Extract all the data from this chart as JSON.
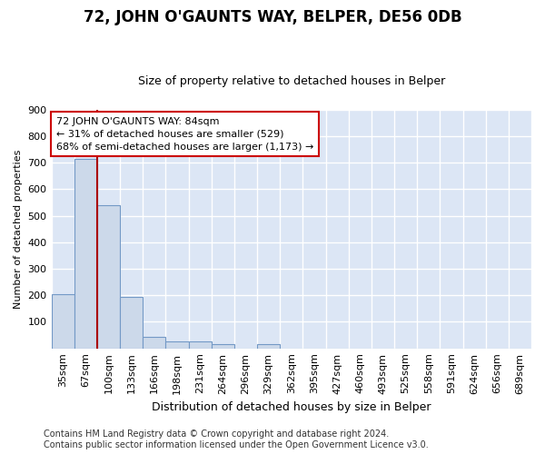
{
  "title": "72, JOHN O'GAUNTS WAY, BELPER, DE56 0DB",
  "subtitle": "Size of property relative to detached houses in Belper",
  "xlabel": "Distribution of detached houses by size in Belper",
  "ylabel": "Number of detached properties",
  "categories": [
    "35sqm",
    "67sqm",
    "100sqm",
    "133sqm",
    "166sqm",
    "198sqm",
    "231sqm",
    "264sqm",
    "296sqm",
    "329sqm",
    "362sqm",
    "395sqm",
    "427sqm",
    "460sqm",
    "493sqm",
    "525sqm",
    "558sqm",
    "591sqm",
    "624sqm",
    "656sqm",
    "689sqm"
  ],
  "values": [
    205,
    715,
    540,
    195,
    45,
    25,
    25,
    15,
    0,
    15,
    0,
    0,
    0,
    0,
    0,
    0,
    0,
    0,
    0,
    0,
    0
  ],
  "bar_color": "#ccd9ea",
  "bar_edge_color": "#7399c6",
  "red_line_color": "#aa0000",
  "annotation_text": "72 JOHN O'GAUNTS WAY: 84sqm\n← 31% of detached houses are smaller (529)\n68% of semi-detached houses are larger (1,173) →",
  "annotation_box_facecolor": "#ffffff",
  "annotation_box_edgecolor": "#cc0000",
  "fig_bg_color": "#ffffff",
  "plot_bg_color": "#dce6f5",
  "grid_color": "#ffffff",
  "footer": "Contains HM Land Registry data © Crown copyright and database right 2024.\nContains public sector information licensed under the Open Government Licence v3.0.",
  "ylim": [
    0,
    900
  ],
  "yticks": [
    0,
    100,
    200,
    300,
    400,
    500,
    600,
    700,
    800,
    900
  ],
  "title_fontsize": 12,
  "subtitle_fontsize": 9,
  "xlabel_fontsize": 9,
  "ylabel_fontsize": 8,
  "tick_fontsize": 8,
  "annotation_fontsize": 8,
  "footer_fontsize": 7
}
